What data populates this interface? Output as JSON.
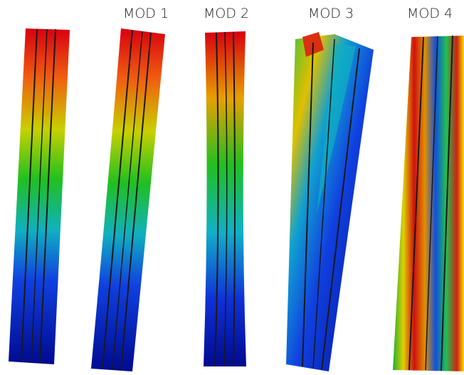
{
  "labels": [
    "MOD 1",
    "MOD 2",
    "MOD 3",
    "MOD 4"
  ]
}
